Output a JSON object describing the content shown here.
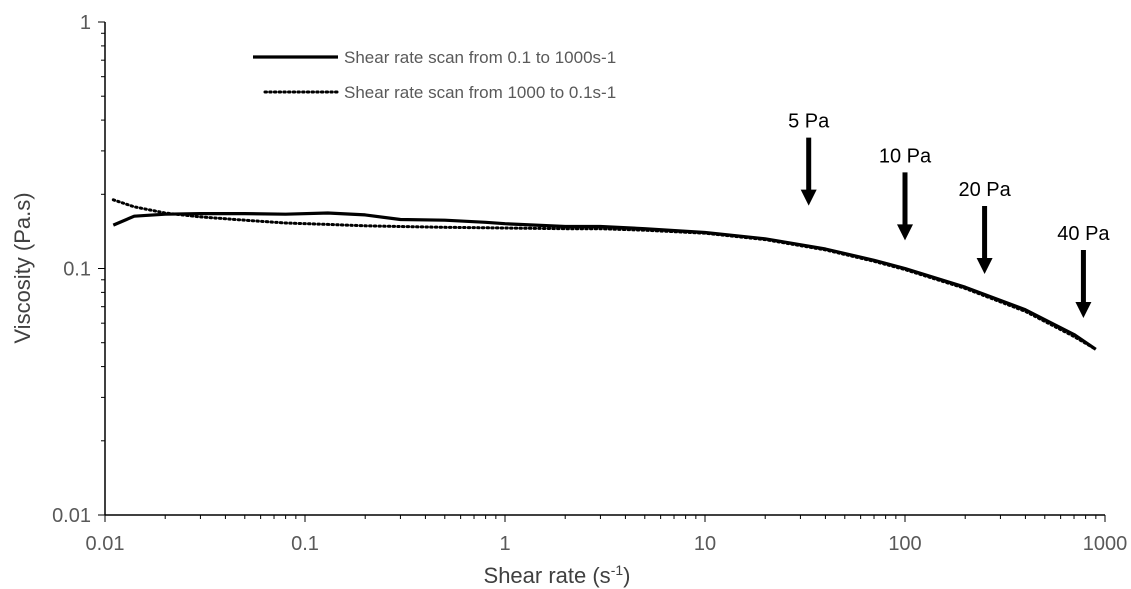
{
  "chart_data": {
    "type": "line",
    "x_scale": "log",
    "y_scale": "log",
    "xlim": [
      0.01,
      1000
    ],
    "ylim": [
      0.01,
      1
    ],
    "x_ticks": [
      "0.01",
      "0.1",
      "1",
      "10",
      "100",
      "1000"
    ],
    "y_ticks": [
      "0.01",
      "0.1",
      "1"
    ],
    "xlabel": "Shear rate (s",
    "xlabel_sup": "-1",
    "xlabel_end": ")",
    "ylabel": "Viscosity (Pa.s)",
    "grid": false,
    "legend_position": "top-left",
    "series": [
      {
        "name": "Shear rate scan from 0.1 to 1000s-1",
        "style": "solid",
        "color": "#000000",
        "x": [
          0.011,
          0.014,
          0.02,
          0.03,
          0.05,
          0.08,
          0.13,
          0.2,
          0.3,
          0.5,
          0.8,
          1.0,
          2.0,
          3.0,
          5.0,
          10,
          20,
          40,
          70,
          100,
          200,
          400,
          700,
          900
        ],
        "y": [
          0.15,
          0.163,
          0.166,
          0.167,
          0.167,
          0.166,
          0.168,
          0.165,
          0.158,
          0.157,
          0.154,
          0.152,
          0.148,
          0.148,
          0.145,
          0.14,
          0.132,
          0.12,
          0.108,
          0.1,
          0.084,
          0.068,
          0.054,
          0.047
        ]
      },
      {
        "name": "Shear rate scan from 1000 to 0.1s-1",
        "style": "dotted",
        "color": "#000000",
        "x": [
          0.011,
          0.014,
          0.02,
          0.03,
          0.05,
          0.08,
          0.13,
          0.2,
          0.3,
          0.5,
          1.0,
          2.0,
          3.0,
          5.0,
          10,
          20,
          40,
          70,
          100,
          200,
          400,
          700,
          900
        ],
        "y": [
          0.19,
          0.178,
          0.168,
          0.162,
          0.157,
          0.153,
          0.151,
          0.149,
          0.148,
          0.147,
          0.146,
          0.145,
          0.145,
          0.143,
          0.139,
          0.131,
          0.119,
          0.107,
          0.099,
          0.083,
          0.067,
          0.053,
          0.047
        ]
      }
    ],
    "annotations": [
      {
        "text": "5 Pa",
        "x": 33,
        "y": 0.18
      },
      {
        "text": "10 Pa",
        "x": 100,
        "y": 0.13
      },
      {
        "text": "20 Pa",
        "x": 250,
        "y": 0.095
      },
      {
        "text": "40 Pa",
        "x": 780,
        "y": 0.063
      }
    ]
  }
}
